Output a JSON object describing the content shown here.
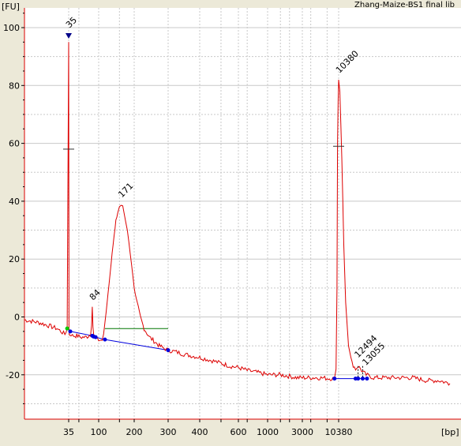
{
  "chart_data": {
    "type": "line",
    "title": "Zhang-Maize-BS1 final lib",
    "ylabel": "[FU]",
    "xlabel": "[bp]",
    "ylim": [
      -32,
      107
    ],
    "y_ticks": [
      -20,
      0,
      20,
      40,
      60,
      80,
      100
    ],
    "x_ticks": [
      {
        "label": "35",
        "bp": 35
      },
      {
        "label": "100",
        "bp": 100
      },
      {
        "label": "200",
        "bp": 200
      },
      {
        "label": "300",
        "bp": 300
      },
      {
        "label": "400",
        "bp": 400
      },
      {
        "label": "600",
        "bp": 600
      },
      {
        "label": "1000",
        "bp": 1000
      },
      {
        "label": "3000",
        "bp": 3000
      },
      {
        "label": "10380",
        "bp": 10380
      }
    ],
    "x_grid_bp": [
      35,
      50,
      100,
      150,
      200,
      300,
      400,
      500,
      600,
      700,
      1000,
      1500,
      2000,
      3000,
      4000,
      7000,
      10380
    ],
    "grid": true,
    "series": [
      {
        "color": "#dd0000",
        "points": [
          [
            25,
            -1
          ],
          [
            28,
            -2
          ],
          [
            30,
            -3
          ],
          [
            32,
            -4
          ],
          [
            33,
            -5
          ],
          [
            34,
            -6
          ],
          [
            34.6,
            -4
          ],
          [
            35,
            95
          ],
          [
            35.4,
            -4
          ],
          [
            36,
            -6
          ],
          [
            38,
            -6
          ],
          [
            40,
            -6.5
          ],
          [
            45,
            -6.5
          ],
          [
            48,
            -6.5
          ],
          [
            50,
            -6.8
          ],
          [
            55,
            -7
          ],
          [
            60,
            -7
          ],
          [
            65,
            -7
          ],
          [
            70,
            -6.5
          ],
          [
            75,
            -6
          ],
          [
            78,
            -3
          ],
          [
            80,
            3.5
          ],
          [
            82,
            -3
          ],
          [
            84,
            -6
          ],
          [
            88,
            -7
          ],
          [
            92,
            -7.5
          ],
          [
            96,
            -8
          ],
          [
            100,
            -8
          ],
          [
            103,
            -8
          ],
          [
            107,
            -8
          ],
          [
            110,
            -6
          ],
          [
            113,
            -2
          ],
          [
            116,
            2
          ],
          [
            120,
            8
          ],
          [
            125,
            15
          ],
          [
            130,
            22
          ],
          [
            135,
            28
          ],
          [
            140,
            33
          ],
          [
            145,
            36
          ],
          [
            150,
            38.5
          ],
          [
            155,
            39
          ],
          [
            160,
            38
          ],
          [
            165,
            36
          ],
          [
            170,
            33
          ],
          [
            175,
            30
          ],
          [
            180,
            26
          ],
          [
            185,
            22
          ],
          [
            190,
            18
          ],
          [
            195,
            14
          ],
          [
            200,
            10
          ],
          [
            205,
            6
          ],
          [
            210,
            3
          ],
          [
            215,
            0
          ],
          [
            220,
            -2
          ],
          [
            225,
            -4
          ],
          [
            230,
            -5
          ],
          [
            240,
            -7
          ],
          [
            250,
            -8
          ],
          [
            260,
            -9
          ],
          [
            270,
            -10
          ],
          [
            280,
            -10.5
          ],
          [
            290,
            -11
          ],
          [
            300,
            -11.5
          ],
          [
            320,
            -12
          ],
          [
            350,
            -13
          ],
          [
            400,
            -14
          ],
          [
            450,
            -15
          ],
          [
            500,
            -16
          ],
          [
            550,
            -17
          ],
          [
            600,
            -17.5
          ],
          [
            650,
            -18
          ],
          [
            700,
            -18.5
          ],
          [
            800,
            -19
          ],
          [
            900,
            -19.5
          ],
          [
            1000,
            -20
          ],
          [
            1300,
            -20
          ],
          [
            1500,
            -20
          ],
          [
            2000,
            -20.5
          ],
          [
            2500,
            -21
          ],
          [
            3000,
            -21
          ],
          [
            4000,
            -21
          ],
          [
            5000,
            -21
          ],
          [
            7000,
            -21.2
          ],
          [
            8500,
            -21.3
          ],
          [
            9000,
            -21.3
          ],
          [
            9500,
            -18
          ],
          [
            9800,
            10
          ],
          [
            10000,
            60
          ],
          [
            10200,
            75
          ],
          [
            10380,
            82
          ],
          [
            10500,
            78
          ],
          [
            10700,
            55
          ],
          [
            10900,
            25
          ],
          [
            11100,
            5
          ],
          [
            11400,
            -10
          ],
          [
            11800,
            -16
          ],
          [
            12200,
            -18
          ],
          [
            12494,
            -17
          ],
          [
            12800,
            -18
          ],
          [
            13055,
            -19
          ],
          [
            13500,
            -20
          ],
          [
            14500,
            -21
          ],
          [
            16000,
            -21
          ],
          [
            18000,
            -21
          ],
          [
            21000,
            -21
          ],
          [
            24000,
            -22
          ],
          [
            27000,
            -22
          ],
          [
            30000,
            -23
          ]
        ]
      }
    ],
    "peak_labels": [
      {
        "text": "35",
        "bp": 35,
        "fu": 97,
        "color": "#008800"
      },
      {
        "text": "84",
        "bp": 80,
        "fu": 4.5,
        "color": "#000000"
      },
      {
        "text": "171",
        "bp": 155,
        "fu": 40,
        "color": "#000000"
      },
      {
        "text": "10380",
        "bp": 10380,
        "fu": 83,
        "color": "#7a1fa0"
      },
      {
        "text": "12494",
        "bp": 12494,
        "fu": -17,
        "color": "#000000"
      },
      {
        "text": "13055",
        "bp": 13055,
        "fu": -18,
        "color": "#000000"
      }
    ],
    "baseline_segments": [
      {
        "color": "#0000dd",
        "points": [
          [
            35,
            -4.5
          ],
          [
            37,
            -5
          ],
          [
            80,
            -6.5
          ],
          [
            84,
            -6.8
          ],
          [
            90,
            -7
          ],
          [
            113,
            -7.8
          ],
          [
            300,
            -11.5
          ]
        ]
      },
      {
        "color": "#0000dd",
        "points": [
          [
            9000,
            -21.3
          ],
          [
            12494,
            -21.3
          ],
          [
            13055,
            -21.3
          ],
          [
            13600,
            -21.3
          ]
        ]
      },
      {
        "color": "#007700",
        "points": [
          [
            113,
            -4
          ],
          [
            300,
            -4
          ]
        ]
      }
    ],
    "marker_dots": [
      {
        "bp": 34.6,
        "fu": -4,
        "color": "#00cc00"
      },
      {
        "bp": 37,
        "fu": -5,
        "color": "#0000dd"
      },
      {
        "bp": 80,
        "fu": -6.5,
        "color": "#0000dd"
      },
      {
        "bp": 84,
        "fu": -6.8,
        "color": "#0000dd"
      },
      {
        "bp": 90,
        "fu": -7,
        "color": "#0000dd"
      },
      {
        "bp": 113,
        "fu": -7.8,
        "color": "#0000dd"
      },
      {
        "bp": 300,
        "fu": -11.5,
        "color": "#0000dd"
      },
      {
        "bp": 9000,
        "fu": -21.3,
        "color": "#0000dd"
      },
      {
        "bp": 12200,
        "fu": -21.3,
        "color": "#0000dd"
      },
      {
        "bp": 12494,
        "fu": -21.3,
        "color": "#0000dd"
      },
      {
        "bp": 13055,
        "fu": -21.3,
        "color": "#0000dd"
      },
      {
        "bp": 13600,
        "fu": -21.3,
        "color": "#0000dd"
      }
    ],
    "half_height_ticks": [
      {
        "bp": 35,
        "fu": 58
      },
      {
        "bp": 10380,
        "fu": 59
      }
    ]
  }
}
